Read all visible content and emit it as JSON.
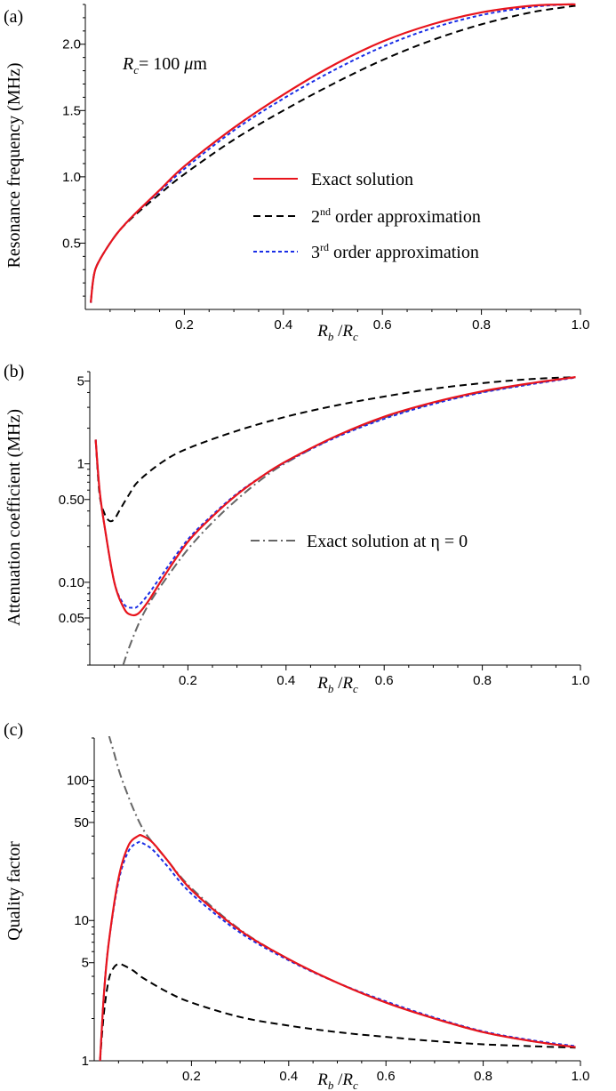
{
  "x_tick_labels": [
    "0.2",
    "0.4",
    "0.6",
    "0.8",
    "1.0"
  ],
  "series_names": {
    "exact": "Exact solution",
    "second_order": "2nd order approximation",
    "third_order": "3rd order approximation",
    "exact_eta0": "Exact solution at η = 0"
  },
  "colors": {
    "exact": "#e8141c",
    "second_order": "#000000",
    "third_order": "#1a2ee6",
    "exact_eta0": "#666666"
  },
  "chart_data": [
    {
      "panel_label": "(a)",
      "type": "line",
      "ylabel": "Resonance frequency (MHz)",
      "xlabel": "R_b / R_c",
      "annotation": "R_c = 100 μm",
      "xlim": [
        0,
        1.0
      ],
      "ylim": [
        0,
        2.3
      ],
      "y_scale": "linear",
      "y_ticks": [
        0.5,
        1.0,
        1.5,
        2.0
      ],
      "y_tick_labels": [
        "0.5",
        "1.0",
        "1.5",
        "2.0"
      ],
      "legend": [
        "Exact solution",
        "2nd order approximation",
        "3rd order approximation"
      ],
      "series": [
        {
          "name": "Exact solution",
          "x": [
            0.011,
            0.015,
            0.02,
            0.03,
            0.05,
            0.07,
            0.1,
            0.15,
            0.2,
            0.3,
            0.4,
            0.5,
            0.6,
            0.7,
            0.8,
            0.9,
            0.97,
            0.99
          ],
          "y": [
            0.05,
            0.2,
            0.3,
            0.38,
            0.5,
            0.6,
            0.72,
            0.9,
            1.08,
            1.37,
            1.62,
            1.84,
            2.02,
            2.15,
            2.24,
            2.29,
            2.3,
            2.3
          ]
        },
        {
          "name": "2nd order approximation",
          "x": [
            0.011,
            0.015,
            0.02,
            0.03,
            0.05,
            0.07,
            0.1,
            0.15,
            0.2,
            0.3,
            0.4,
            0.5,
            0.6,
            0.7,
            0.8,
            0.9,
            0.97,
            0.99
          ],
          "y": [
            0.05,
            0.2,
            0.3,
            0.38,
            0.5,
            0.6,
            0.71,
            0.87,
            1.02,
            1.28,
            1.5,
            1.7,
            1.88,
            2.03,
            2.15,
            2.24,
            2.28,
            2.29
          ]
        },
        {
          "name": "3rd order approximation",
          "x": [
            0.011,
            0.015,
            0.02,
            0.03,
            0.05,
            0.07,
            0.1,
            0.15,
            0.2,
            0.3,
            0.4,
            0.5,
            0.6,
            0.7,
            0.8,
            0.9,
            0.97,
            0.99
          ],
          "y": [
            0.05,
            0.2,
            0.3,
            0.38,
            0.5,
            0.6,
            0.72,
            0.89,
            1.06,
            1.35,
            1.59,
            1.8,
            1.98,
            2.12,
            2.22,
            2.28,
            2.3,
            2.3
          ]
        }
      ]
    },
    {
      "panel_label": "(b)",
      "type": "line",
      "ylabel": "Attenuation coefficient (MHz)",
      "xlabel": "R_b / R_c",
      "xlim": [
        0,
        1.0
      ],
      "ylim": [
        0.02,
        6
      ],
      "y_scale": "log",
      "y_ticks": [
        0.05,
        0.1,
        0.5,
        1,
        5
      ],
      "y_tick_labels": [
        "0.05",
        "0.10",
        "0.50",
        "1",
        "5"
      ],
      "legend": [
        "Exact solution at η = 0"
      ],
      "series": [
        {
          "name": "Exact solution",
          "x": [
            0.012,
            0.02,
            0.03,
            0.05,
            0.07,
            0.085,
            0.1,
            0.12,
            0.15,
            0.2,
            0.25,
            0.3,
            0.35,
            0.4,
            0.5,
            0.6,
            0.7,
            0.8,
            0.9,
            0.99
          ],
          "y": [
            1.6,
            0.6,
            0.3,
            0.1,
            0.06,
            0.053,
            0.055,
            0.07,
            0.11,
            0.22,
            0.36,
            0.55,
            0.78,
            1.05,
            1.7,
            2.5,
            3.3,
            4.1,
            4.8,
            5.4
          ]
        },
        {
          "name": "2nd order approximation",
          "x": [
            0.012,
            0.02,
            0.03,
            0.04,
            0.05,
            0.06,
            0.08,
            0.1,
            0.15,
            0.2,
            0.3,
            0.4,
            0.5,
            0.6,
            0.7,
            0.8,
            0.9,
            0.99
          ],
          "y": [
            1.6,
            0.55,
            0.38,
            0.33,
            0.34,
            0.4,
            0.55,
            0.72,
            1.05,
            1.35,
            1.9,
            2.5,
            3.1,
            3.7,
            4.3,
            4.8,
            5.2,
            5.4
          ]
        },
        {
          "name": "3rd order approximation",
          "x": [
            0.012,
            0.02,
            0.03,
            0.05,
            0.07,
            0.09,
            0.1,
            0.12,
            0.15,
            0.2,
            0.25,
            0.3,
            0.35,
            0.4,
            0.5,
            0.6,
            0.7,
            0.8,
            0.9,
            0.99
          ],
          "y": [
            1.6,
            0.6,
            0.3,
            0.1,
            0.065,
            0.061,
            0.064,
            0.08,
            0.12,
            0.23,
            0.37,
            0.56,
            0.78,
            1.04,
            1.66,
            2.4,
            3.2,
            4.0,
            4.7,
            5.35
          ]
        },
        {
          "name": "Exact solution at η = 0",
          "x": [
            0.068,
            0.08,
            0.1,
            0.12,
            0.15,
            0.2,
            0.25,
            0.3,
            0.35,
            0.4,
            0.5,
            0.6,
            0.7,
            0.8,
            0.9,
            0.99
          ],
          "y": [
            0.02,
            0.028,
            0.045,
            0.065,
            0.1,
            0.19,
            0.32,
            0.5,
            0.74,
            1.02,
            1.68,
            2.45,
            3.25,
            4.05,
            4.75,
            5.4
          ]
        }
      ]
    },
    {
      "panel_label": "(c)",
      "type": "line",
      "ylabel": "Quality factor",
      "xlabel": "R_b / R_c",
      "xlim": [
        0,
        1.0
      ],
      "ylim": [
        1,
        200
      ],
      "y_scale": "log",
      "y_ticks": [
        1,
        5,
        10,
        50,
        100
      ],
      "y_tick_labels": [
        "1",
        "5",
        "10",
        "50",
        "100"
      ],
      "series": [
        {
          "name": "Exact solution",
          "x": [
            0.012,
            0.02,
            0.03,
            0.05,
            0.07,
            0.09,
            0.1,
            0.12,
            0.15,
            0.2,
            0.3,
            0.4,
            0.5,
            0.6,
            0.7,
            0.8,
            0.9,
            0.99
          ],
          "y": [
            1,
            3,
            7,
            20,
            34,
            40,
            40,
            36,
            27,
            16.5,
            8.5,
            5.3,
            3.6,
            2.6,
            2.0,
            1.6,
            1.38,
            1.25
          ]
        },
        {
          "name": "2nd order approximation",
          "x": [
            0.012,
            0.02,
            0.03,
            0.04,
            0.05,
            0.06,
            0.08,
            0.1,
            0.15,
            0.2,
            0.3,
            0.4,
            0.5,
            0.6,
            0.7,
            0.8,
            0.9,
            0.99
          ],
          "y": [
            1,
            2.2,
            3.8,
            4.6,
            4.9,
            4.8,
            4.4,
            3.9,
            3.1,
            2.6,
            2.05,
            1.78,
            1.6,
            1.48,
            1.38,
            1.31,
            1.27,
            1.24
          ]
        },
        {
          "name": "3rd order approximation",
          "x": [
            0.012,
            0.02,
            0.03,
            0.05,
            0.07,
            0.09,
            0.1,
            0.12,
            0.15,
            0.2,
            0.3,
            0.4,
            0.5,
            0.6,
            0.7,
            0.8,
            0.9,
            0.99
          ],
          "y": [
            1,
            3,
            7,
            19,
            31,
            36,
            35.5,
            32,
            24.5,
            15.5,
            8.2,
            5.2,
            3.6,
            2.65,
            2.03,
            1.62,
            1.4,
            1.27
          ]
        },
        {
          "name": "Exact solution at η = 0",
          "x": [
            0.03,
            0.04,
            0.05,
            0.06,
            0.08,
            0.1,
            0.12,
            0.15,
            0.2,
            0.3,
            0.4,
            0.5,
            0.6,
            0.7,
            0.8,
            0.9,
            0.99
          ],
          "y": [
            210,
            160,
            120,
            95,
            63,
            45,
            36,
            27,
            17,
            8.6,
            5.3,
            3.6,
            2.6,
            2.0,
            1.6,
            1.38,
            1.25
          ]
        }
      ]
    }
  ]
}
